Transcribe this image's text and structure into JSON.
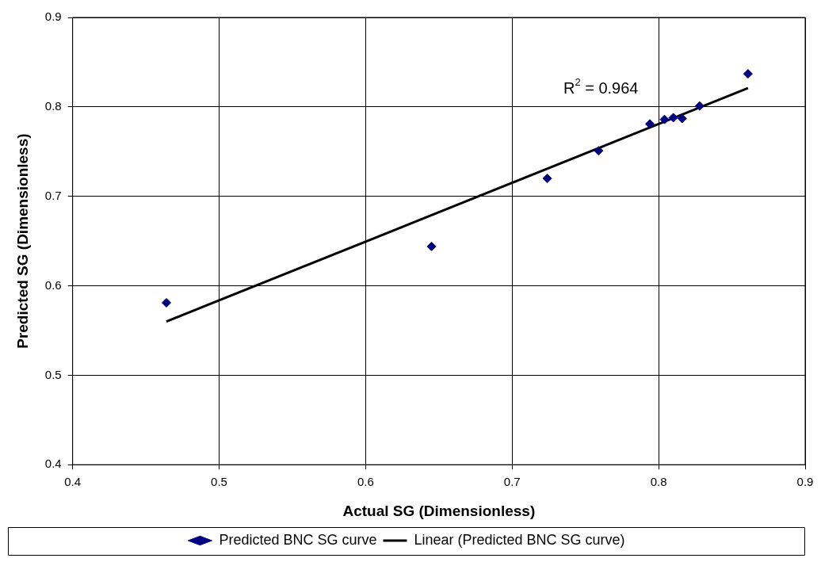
{
  "chart_data": {
    "type": "scatter",
    "xlabel": "Actual SG (Dimensionless)",
    "ylabel": "Predicted SG (Dimensionless)",
    "series": [
      {
        "name": "Predicted BNC SG curve",
        "type": "scatter",
        "color": "#000080",
        "marker": "diamond",
        "x": [
          0.464,
          0.645,
          0.724,
          0.759,
          0.794,
          0.804,
          0.81,
          0.816,
          0.828,
          0.861
        ],
        "values": [
          0.581,
          0.644,
          0.72,
          0.751,
          0.781,
          0.786,
          0.788,
          0.787,
          0.801,
          0.837
        ]
      },
      {
        "name": "Linear (Predicted BNC SG curve)",
        "type": "line",
        "color": "#000000",
        "marker": "none",
        "line_style": "solid",
        "x": [
          0.464,
          0.861
        ],
        "values": [
          0.56,
          0.821
        ]
      }
    ],
    "annotations": [
      "R$^{2}$ = 0.964"
    ],
    "xlim": [
      0.4,
      0.9
    ],
    "xticks": [
      0.4,
      0.5,
      0.6,
      0.7,
      0.8,
      0.9
    ],
    "ylim": [
      0.4,
      0.9
    ],
    "yticks": [
      0.4,
      0.5,
      0.6,
      0.7,
      0.8,
      0.9
    ],
    "grid": true,
    "legend": "bottom"
  }
}
